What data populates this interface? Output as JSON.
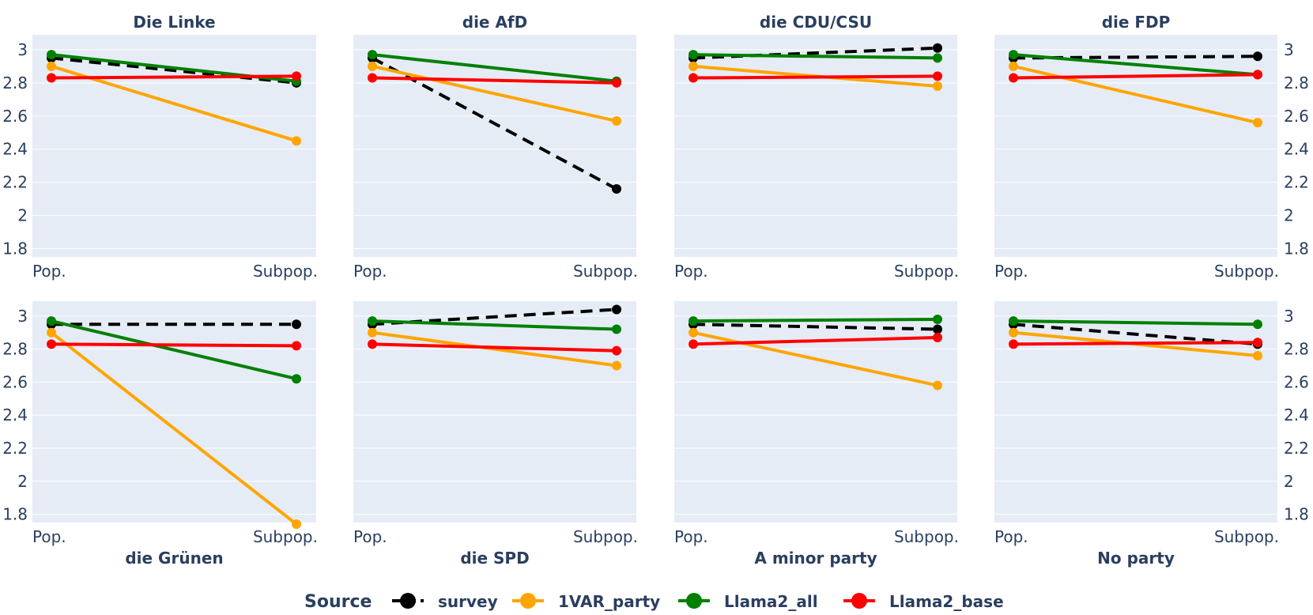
{
  "chart_data": {
    "type": "line",
    "categories": [
      "Pop.",
      "Subpop."
    ],
    "ylim": [
      1.75,
      3.09
    ],
    "yticks": [
      1.8,
      2,
      2.2,
      2.4,
      2.6,
      2.8,
      3
    ],
    "ytick_labels": [
      "1.8",
      "2",
      "2.2",
      "2.4",
      "2.6",
      "2.8",
      "3"
    ],
    "series_styles": [
      {
        "name": "survey",
        "color": "#000000",
        "dash": true
      },
      {
        "name": "1VAR_party",
        "color": "#FFA500",
        "dash": false
      },
      {
        "name": "Llama2_all",
        "color": "#008000",
        "dash": false
      },
      {
        "name": "Llama2_base",
        "color": "#FF0000",
        "dash": false
      }
    ],
    "legend": {
      "title": "Source",
      "position": "bottom-center"
    },
    "panels": [
      {
        "title": "Die Linke",
        "series": [
          {
            "name": "survey",
            "values": [
              2.95,
              2.8
            ]
          },
          {
            "name": "1VAR_party",
            "values": [
              2.9,
              2.45
            ]
          },
          {
            "name": "Llama2_all",
            "values": [
              2.97,
              2.81
            ]
          },
          {
            "name": "Llama2_base",
            "values": [
              2.83,
              2.84
            ]
          }
        ]
      },
      {
        "title": "die AfD",
        "series": [
          {
            "name": "survey",
            "values": [
              2.95,
              2.16
            ]
          },
          {
            "name": "1VAR_party",
            "values": [
              2.9,
              2.57
            ]
          },
          {
            "name": "Llama2_all",
            "values": [
              2.97,
              2.81
            ]
          },
          {
            "name": "Llama2_base",
            "values": [
              2.83,
              2.8
            ]
          }
        ]
      },
      {
        "title": "die CDU/CSU",
        "series": [
          {
            "name": "survey",
            "values": [
              2.95,
              3.01
            ]
          },
          {
            "name": "1VAR_party",
            "values": [
              2.9,
              2.78
            ]
          },
          {
            "name": "Llama2_all",
            "values": [
              2.97,
              2.95
            ]
          },
          {
            "name": "Llama2_base",
            "values": [
              2.83,
              2.84
            ]
          }
        ]
      },
      {
        "title": "die FDP",
        "series": [
          {
            "name": "survey",
            "values": [
              2.95,
              2.96
            ]
          },
          {
            "name": "1VAR_party",
            "values": [
              2.9,
              2.56
            ]
          },
          {
            "name": "Llama2_all",
            "values": [
              2.97,
              2.85
            ]
          },
          {
            "name": "Llama2_base",
            "values": [
              2.83,
              2.85
            ]
          }
        ]
      },
      {
        "title": "die Grünen",
        "series": [
          {
            "name": "survey",
            "values": [
              2.95,
              2.95
            ]
          },
          {
            "name": "1VAR_party",
            "values": [
              2.9,
              1.74
            ]
          },
          {
            "name": "Llama2_all",
            "values": [
              2.97,
              2.62
            ]
          },
          {
            "name": "Llama2_base",
            "values": [
              2.83,
              2.82
            ]
          }
        ]
      },
      {
        "title": "die SPD",
        "series": [
          {
            "name": "survey",
            "values": [
              2.95,
              3.04
            ]
          },
          {
            "name": "1VAR_party",
            "values": [
              2.9,
              2.7
            ]
          },
          {
            "name": "Llama2_all",
            "values": [
              2.97,
              2.92
            ]
          },
          {
            "name": "Llama2_base",
            "values": [
              2.83,
              2.79
            ]
          }
        ]
      },
      {
        "title": "A minor party",
        "series": [
          {
            "name": "survey",
            "values": [
              2.95,
              2.92
            ]
          },
          {
            "name": "1VAR_party",
            "values": [
              2.9,
              2.58
            ]
          },
          {
            "name": "Llama2_all",
            "values": [
              2.97,
              2.98
            ]
          },
          {
            "name": "Llama2_base",
            "values": [
              2.83,
              2.87
            ]
          }
        ]
      },
      {
        "title": "No party",
        "series": [
          {
            "name": "survey",
            "values": [
              2.95,
              2.83
            ]
          },
          {
            "name": "1VAR_party",
            "values": [
              2.9,
              2.76
            ]
          },
          {
            "name": "Llama2_all",
            "values": [
              2.97,
              2.95
            ]
          },
          {
            "name": "Llama2_base",
            "values": [
              2.83,
              2.84
            ]
          }
        ]
      }
    ]
  }
}
